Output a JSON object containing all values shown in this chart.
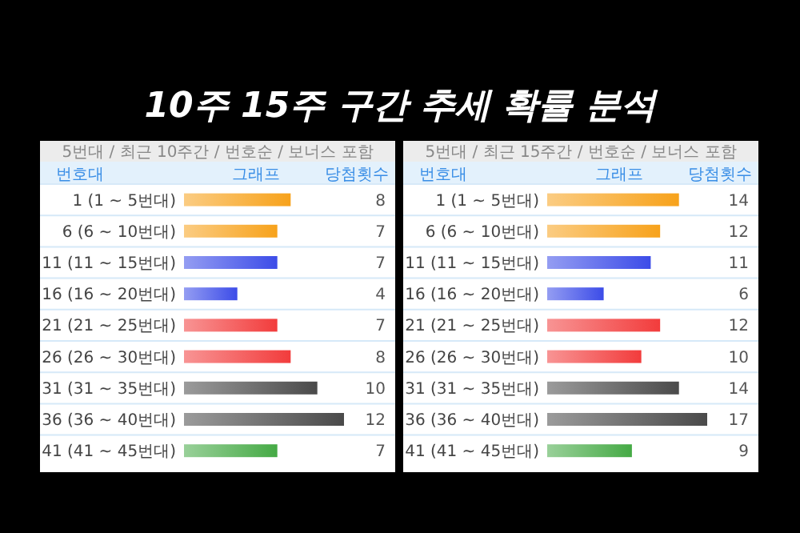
{
  "chart_data": [
    {
      "type": "other",
      "title": "10주 15주 구간 추세 확률 분석"
    },
    {
      "type": "bar",
      "orientation": "horizontal",
      "title": "5번대 / 최근 10주간 / 번호순 / 보너스 포함",
      "ylabel": "번호대",
      "xlabel": "그래프",
      "annotations": [
        "당첨횟수"
      ],
      "categories": [
        "1 (1 ~ 5번대)",
        "6 (6 ~ 10번대)",
        "11 (11 ~ 15번대)",
        "16 (16 ~ 20번대)",
        "21 (21 ~ 25번대)",
        "26 (26 ~ 30번대)",
        "31 (31 ~ 35번대)",
        "36 (36 ~ 40번대)",
        "41 (41 ~ 45번대)"
      ],
      "values": [
        8,
        7,
        7,
        4,
        7,
        8,
        10,
        12,
        7
      ],
      "colors": [
        "#f7a21b",
        "#f7a21b",
        "#3c4ce8",
        "#3c4ce8",
        "#f23c3c",
        "#f23c3c",
        "#4a4a4a",
        "#4a4a4a",
        "#45aa45"
      ],
      "data_labels": true
    },
    {
      "type": "bar",
      "orientation": "horizontal",
      "title": "5번대 / 최근 15주간 / 번호순 / 보너스 포함",
      "ylabel": "번호대",
      "xlabel": "그래프",
      "annotations": [
        "당첨횟수"
      ],
      "categories": [
        "1 (1 ~ 5번대)",
        "6 (6 ~ 10번대)",
        "11 (11 ~ 15번대)",
        "16 (16 ~ 20번대)",
        "21 (21 ~ 25번대)",
        "26 (26 ~ 30번대)",
        "31 (31 ~ 35번대)",
        "36 (36 ~ 40번대)",
        "41 (41 ~ 45번대)"
      ],
      "values": [
        14,
        12,
        11,
        6,
        12,
        10,
        14,
        17,
        9
      ],
      "colors": [
        "#f7a21b",
        "#f7a21b",
        "#3c4ce8",
        "#3c4ce8",
        "#f23c3c",
        "#f23c3c",
        "#4a4a4a",
        "#4a4a4a",
        "#45aa45"
      ],
      "data_labels": true
    }
  ]
}
